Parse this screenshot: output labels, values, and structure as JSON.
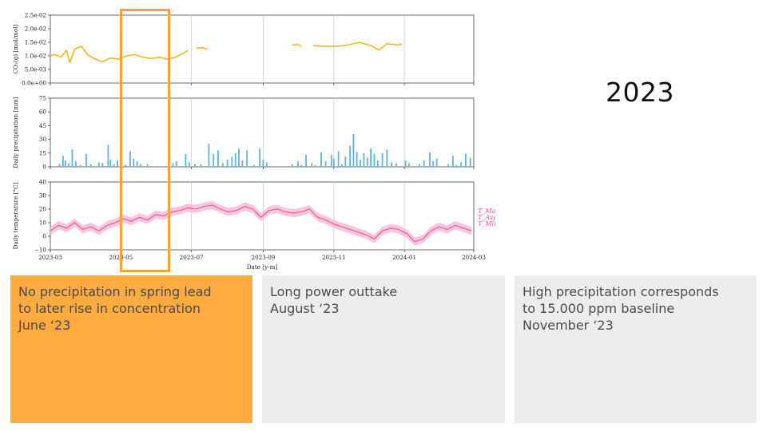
{
  "slide": {
    "year_title": "2023",
    "highlight_color": "#f7a33c"
  },
  "cards": [
    {
      "lines": [
        "No precipitation in spring lead",
        "to later rise in concentration",
        "June ‘23"
      ],
      "background": "#ffab40"
    },
    {
      "lines": [
        "Long power outtake",
        "August ‘23"
      ],
      "background": "#ededed"
    },
    {
      "lines": [
        "High precipitation corresponds",
        "to 15.000 ppm baseline",
        "November ‘23"
      ],
      "background": "#ededed"
    }
  ],
  "chart_data": {
    "type": "line",
    "xlabel": "Date [y-m]",
    "x_ticks": [
      "2023-03",
      "2023-05",
      "2023-07",
      "2023-09",
      "2023-11",
      "2024-01",
      "2024-03"
    ],
    "x_range": [
      "2023-03-01",
      "2024-03-01"
    ],
    "panels": [
      {
        "type": "line",
        "ylabel": "CO₂(g) [mol/mol]",
        "ylim": [
          0,
          0.025
        ],
        "y_ticks": [
          "0.0e+00",
          "5.0e-03",
          "1.0e-02",
          "1.5e-02",
          "2.0e-02",
          "2.5e-02"
        ],
        "color": "#f5b820",
        "segments": [
          [
            [
              "2023-03-01",
              0.01
            ],
            [
              "2023-03-05",
              0.0105
            ],
            [
              "2023-03-10",
              0.0095
            ],
            [
              "2023-03-15",
              0.012
            ],
            [
              "2023-03-18",
              0.0075
            ],
            [
              "2023-03-22",
              0.0125
            ],
            [
              "2023-03-28",
              0.0135
            ],
            [
              "2023-04-02",
              0.0105
            ],
            [
              "2023-04-08",
              0.009
            ],
            [
              "2023-04-15",
              0.0078
            ],
            [
              "2023-04-22",
              0.0092
            ],
            [
              "2023-04-29",
              0.0088
            ],
            [
              "2023-05-06",
              0.01
            ],
            [
              "2023-05-13",
              0.0105
            ],
            [
              "2023-05-20",
              0.0095
            ],
            [
              "2023-05-27",
              0.009
            ],
            [
              "2023-06-03",
              0.0095
            ],
            [
              "2023-06-10",
              0.0088
            ],
            [
              "2023-06-17",
              0.0095
            ],
            [
              "2023-06-24",
              0.011
            ],
            [
              "2023-06-28",
              0.012
            ]
          ],
          [
            [
              "2023-07-05",
              0.0128
            ],
            [
              "2023-07-10",
              0.013
            ],
            [
              "2023-07-15",
              0.0125
            ]
          ],
          [
            [
              "2023-09-26",
              0.014
            ],
            [
              "2023-10-01",
              0.0142
            ],
            [
              "2023-10-04",
              0.0135
            ]
          ],
          [
            [
              "2023-10-14",
              0.0138
            ],
            [
              "2023-10-24",
              0.0135
            ],
            [
              "2023-11-03",
              0.0135
            ],
            [
              "2023-11-13",
              0.014
            ],
            [
              "2023-11-23",
              0.015
            ],
            [
              "2023-12-03",
              0.0138
            ],
            [
              "2023-12-10",
              0.0122
            ],
            [
              "2023-12-17",
              0.0145
            ],
            [
              "2023-12-27",
              0.014
            ],
            [
              "2023-12-30",
              0.0145
            ]
          ]
        ]
      },
      {
        "type": "bar",
        "ylabel": "Daily precipitation [mm]",
        "ylim": [
          0,
          75
        ],
        "y_ticks": [
          "0",
          "15",
          "30",
          "45",
          "60",
          "75"
        ],
        "color": "#5fb4dd",
        "bars": [
          [
            "2023-03-09",
            3
          ],
          [
            "2023-03-12",
            12
          ],
          [
            "2023-03-14",
            7
          ],
          [
            "2023-03-17",
            4
          ],
          [
            "2023-03-20",
            19
          ],
          [
            "2023-03-23",
            6
          ],
          [
            "2023-03-27",
            2
          ],
          [
            "2023-04-01",
            14
          ],
          [
            "2023-04-05",
            3
          ],
          [
            "2023-04-12",
            5
          ],
          [
            "2023-04-15",
            4
          ],
          [
            "2023-04-20",
            24
          ],
          [
            "2023-04-22",
            8
          ],
          [
            "2023-04-25",
            3
          ],
          [
            "2023-04-28",
            7
          ],
          [
            "2023-05-01",
            12
          ],
          [
            "2023-05-05",
            2
          ],
          [
            "2023-05-09",
            17
          ],
          [
            "2023-05-12",
            9
          ],
          [
            "2023-05-15",
            6
          ],
          [
            "2023-05-18",
            3
          ],
          [
            "2023-05-24",
            3
          ],
          [
            "2023-06-15",
            4
          ],
          [
            "2023-06-18",
            6
          ],
          [
            "2023-06-26",
            14
          ],
          [
            "2023-06-29",
            5
          ],
          [
            "2023-07-04",
            3
          ],
          [
            "2023-07-09",
            3
          ],
          [
            "2023-07-16",
            25
          ],
          [
            "2023-07-20",
            14
          ],
          [
            "2023-07-24",
            18
          ],
          [
            "2023-07-28",
            4
          ],
          [
            "2023-08-01",
            8
          ],
          [
            "2023-08-05",
            11
          ],
          [
            "2023-08-08",
            15
          ],
          [
            "2023-08-11",
            20
          ],
          [
            "2023-08-14",
            7
          ],
          [
            "2023-08-18",
            18
          ],
          [
            "2023-08-24",
            2
          ],
          [
            "2023-08-29",
            20
          ],
          [
            "2023-09-01",
            8
          ],
          [
            "2023-09-04",
            5
          ],
          [
            "2023-09-26",
            3
          ],
          [
            "2023-10-01",
            6
          ],
          [
            "2023-10-04",
            2
          ],
          [
            "2023-10-08",
            13
          ],
          [
            "2023-10-13",
            4
          ],
          [
            "2023-10-16",
            2
          ],
          [
            "2023-10-21",
            16
          ],
          [
            "2023-10-25",
            6
          ],
          [
            "2023-10-30",
            13
          ],
          [
            "2023-11-01",
            9
          ],
          [
            "2023-11-05",
            17
          ],
          [
            "2023-11-08",
            3
          ],
          [
            "2023-11-11",
            11
          ],
          [
            "2023-11-15",
            23
          ],
          [
            "2023-11-18",
            36
          ],
          [
            "2023-11-21",
            16
          ],
          [
            "2023-11-24",
            8
          ],
          [
            "2023-11-27",
            15
          ],
          [
            "2023-11-30",
            10
          ],
          [
            "2023-12-03",
            20
          ],
          [
            "2023-12-06",
            14
          ],
          [
            "2023-12-09",
            7
          ],
          [
            "2023-12-13",
            15
          ],
          [
            "2023-12-17",
            19
          ],
          [
            "2023-12-21",
            5
          ],
          [
            "2023-12-25",
            4
          ],
          [
            "2024-01-02",
            7
          ],
          [
            "2024-01-05",
            4
          ],
          [
            "2024-01-14",
            3
          ],
          [
            "2024-01-18",
            7
          ],
          [
            "2024-01-23",
            16
          ],
          [
            "2024-01-26",
            6
          ],
          [
            "2024-01-29",
            9
          ],
          [
            "2024-02-08",
            3
          ],
          [
            "2024-02-12",
            12
          ],
          [
            "2024-02-15",
            2
          ],
          [
            "2024-02-19",
            5
          ],
          [
            "2024-02-23",
            14
          ],
          [
            "2024-02-27",
            10
          ]
        ]
      },
      {
        "type": "area",
        "ylabel": "Daily temperature [°C]",
        "ylim": [
          -10,
          40
        ],
        "y_ticks": [
          "−10",
          "0",
          "10",
          "20",
          "30",
          "40"
        ],
        "color": "#e8559a",
        "band_color": "#f7b3d0",
        "legend": [
          "T_Max.",
          "T_Avg",
          "T_Min."
        ],
        "legend_position": "right",
        "avg": [
          [
            "2023-03-01",
            4
          ],
          [
            "2023-03-08",
            8
          ],
          [
            "2023-03-15",
            6
          ],
          [
            "2023-03-22",
            10
          ],
          [
            "2023-03-29",
            5
          ],
          [
            "2023-04-05",
            7
          ],
          [
            "2023-04-12",
            4
          ],
          [
            "2023-04-19",
            8
          ],
          [
            "2023-04-26",
            10
          ],
          [
            "2023-05-03",
            13
          ],
          [
            "2023-05-10",
            11
          ],
          [
            "2023-05-17",
            14
          ],
          [
            "2023-05-24",
            12
          ],
          [
            "2023-05-31",
            16
          ],
          [
            "2023-06-07",
            15
          ],
          [
            "2023-06-14",
            18
          ],
          [
            "2023-06-21",
            19
          ],
          [
            "2023-06-28",
            21
          ],
          [
            "2023-07-05",
            20
          ],
          [
            "2023-07-12",
            22
          ],
          [
            "2023-07-19",
            23
          ],
          [
            "2023-07-26",
            20
          ],
          [
            "2023-08-02",
            18
          ],
          [
            "2023-08-09",
            19
          ],
          [
            "2023-08-16",
            22
          ],
          [
            "2023-08-23",
            20
          ],
          [
            "2023-08-30",
            14
          ],
          [
            "2023-09-06",
            19
          ],
          [
            "2023-09-13",
            20
          ],
          [
            "2023-09-20",
            18
          ],
          [
            "2023-09-27",
            17
          ],
          [
            "2023-10-04",
            18
          ],
          [
            "2023-10-11",
            20
          ],
          [
            "2023-10-18",
            14
          ],
          [
            "2023-10-25",
            12
          ],
          [
            "2023-11-01",
            9
          ],
          [
            "2023-11-08",
            7
          ],
          [
            "2023-11-15",
            5
          ],
          [
            "2023-11-22",
            3
          ],
          [
            "2023-11-29",
            1
          ],
          [
            "2023-12-06",
            -2
          ],
          [
            "2023-12-13",
            4
          ],
          [
            "2023-12-20",
            6
          ],
          [
            "2023-12-27",
            5
          ],
          [
            "2024-01-03",
            2
          ],
          [
            "2024-01-10",
            -4
          ],
          [
            "2024-01-17",
            -2
          ],
          [
            "2024-01-24",
            4
          ],
          [
            "2024-01-31",
            7
          ],
          [
            "2024-02-07",
            5
          ],
          [
            "2024-02-14",
            8
          ],
          [
            "2024-02-21",
            6
          ],
          [
            "2024-02-28",
            4
          ]
        ],
        "band_half_width": 3
      }
    ]
  }
}
